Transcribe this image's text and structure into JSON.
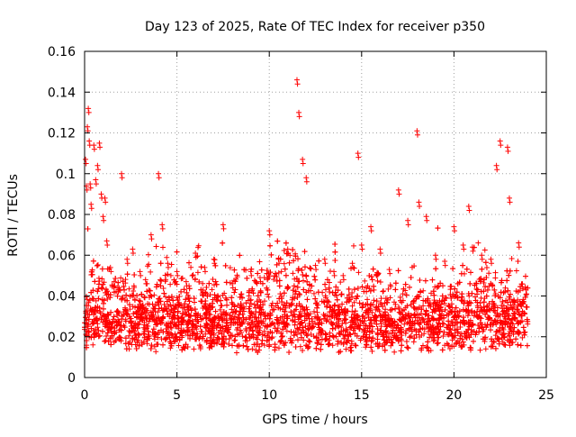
{
  "chart_data": {
    "type": "scatter",
    "title": "Day 123 of 2025, Rate Of TEC Index for receiver p350",
    "xlabel": "GPS time / hours",
    "ylabel": "ROTI / TECUs",
    "xlim": [
      0,
      25
    ],
    "ylim": [
      0,
      0.16
    ],
    "x_ticks": [
      0,
      5,
      10,
      15,
      20,
      25
    ],
    "x_tick_labels": [
      "0",
      "5",
      "10",
      "15",
      "20",
      "25"
    ],
    "y_ticks": [
      0,
      0.02,
      0.04,
      0.06,
      0.08,
      0.1,
      0.12,
      0.14,
      0.16
    ],
    "y_tick_labels": [
      "0",
      "0.02",
      "0.04",
      "0.06",
      "0.08",
      "0.1",
      "0.12",
      "0.14",
      "0.16"
    ],
    "grid": true,
    "grid_style": "dotted",
    "marker": "plus",
    "color": "#ff0000",
    "x_data_range": [
      0,
      24
    ],
    "series": [
      {
        "x": [
          0.05,
          0.1,
          0.15,
          0.2,
          0.25,
          0.3,
          0.35,
          0.5,
          0.6,
          0.7,
          0.8,
          0.9,
          1.0,
          1.1,
          1.2,
          1.4,
          1.6,
          1.8,
          2.0,
          2.3,
          2.6,
          3.0,
          3.3,
          3.6,
          4.0,
          4.2,
          4.5,
          5.0,
          5.5,
          6.0,
          6.5,
          7.0,
          7.5,
          8.0,
          8.5,
          9.0,
          9.5,
          10.0,
          10.5,
          11.0,
          11.5,
          11.6,
          11.8,
          12.0,
          12.5,
          13.0,
          13.5,
          14.0,
          14.5,
          14.8,
          15.0,
          15.5,
          16.0,
          16.5,
          17.0,
          17.5,
          18.0,
          18.1,
          18.5,
          19.0,
          19.5,
          20.0,
          20.5,
          20.8,
          21.0,
          21.5,
          22.0,
          22.3,
          22.5,
          22.9,
          23.0,
          23.5,
          23.9
        ],
        "y": [
          0.107,
          0.094,
          0.123,
          0.132,
          0.116,
          0.095,
          0.085,
          0.114,
          0.097,
          0.104,
          0.115,
          0.09,
          0.079,
          0.088,
          0.067,
          0.054,
          0.047,
          0.044,
          0.1,
          0.058,
          0.063,
          0.052,
          0.048,
          0.07,
          0.1,
          0.075,
          0.056,
          0.052,
          0.047,
          0.061,
          0.054,
          0.058,
          0.075,
          0.046,
          0.041,
          0.052,
          0.049,
          0.072,
          0.058,
          0.063,
          0.146,
          0.13,
          0.107,
          0.098,
          0.055,
          0.058,
          0.052,
          0.05,
          0.056,
          0.11,
          0.065,
          0.074,
          0.063,
          0.053,
          0.092,
          0.077,
          0.121,
          0.086,
          0.079,
          0.06,
          0.057,
          0.074,
          0.065,
          0.084,
          0.064,
          0.06,
          0.058,
          0.104,
          0.116,
          0.113,
          0.088,
          0.066,
          0.043
        ]
      }
    ]
  }
}
